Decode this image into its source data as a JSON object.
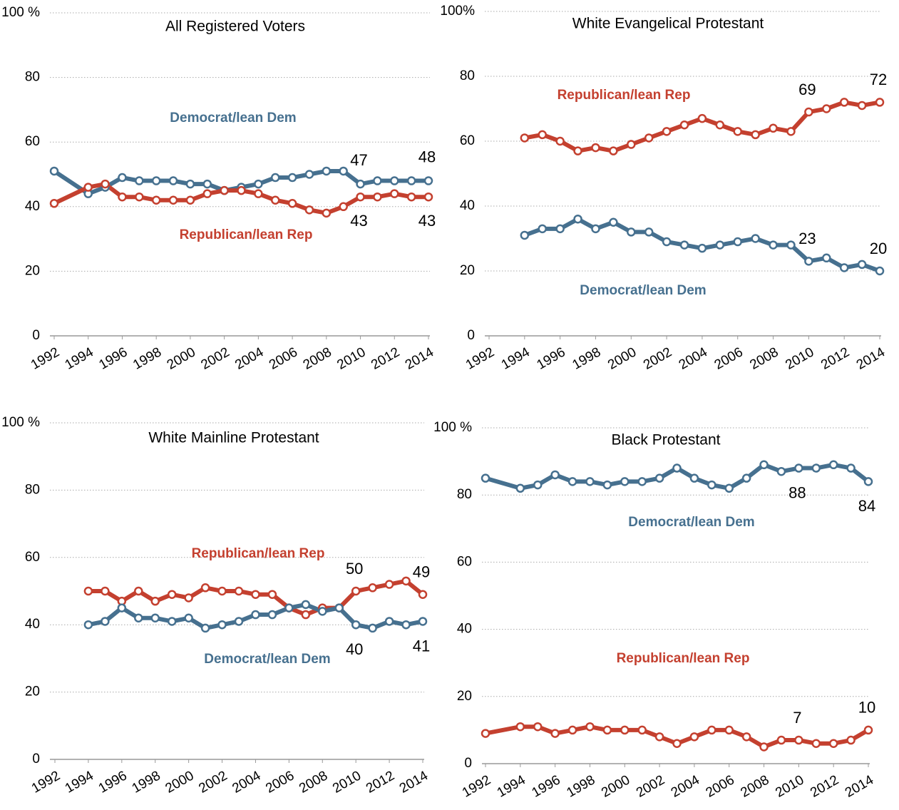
{
  "chart_data": [
    {
      "type": "line",
      "title": "All Registered Voters",
      "x": [
        1992,
        1994,
        1995,
        1996,
        1997,
        1998,
        1999,
        2000,
        2001,
        2002,
        2003,
        2004,
        2005,
        2006,
        2007,
        2008,
        2009,
        2010,
        2011,
        2012,
        2013,
        2014
      ],
      "series": [
        {
          "name": "Democrat/lean Dem",
          "color": "#46708f",
          "values": [
            51,
            44,
            46,
            49,
            48,
            48,
            48,
            47,
            47,
            45,
            46,
            47,
            49,
            49,
            50,
            51,
            51,
            47,
            48,
            48,
            48,
            48
          ],
          "label_indices": [
            17,
            21
          ]
        },
        {
          "name": "Republican/lean Rep",
          "color": "#c4402f",
          "values": [
            41,
            46,
            47,
            43,
            43,
            42,
            42,
            42,
            44,
            45,
            45,
            44,
            42,
            41,
            39,
            38,
            40,
            43,
            43,
            44,
            43,
            43
          ],
          "label_indices": [
            17,
            21
          ]
        }
      ],
      "xlim": [
        1992,
        2014
      ],
      "xticks": [
        1992,
        1994,
        1996,
        1998,
        2000,
        2002,
        2004,
        2006,
        2008,
        2010,
        2012,
        2014
      ],
      "ylim": [
        0,
        100
      ],
      "yticks": [
        0,
        20,
        40,
        60,
        80,
        {
          "value": 100,
          "label": "100 %"
        }
      ],
      "grid": true
    },
    {
      "type": "line",
      "title": "White Evangelical Protestant",
      "x": [
        1994,
        1995,
        1996,
        1997,
        1998,
        1999,
        2000,
        2001,
        2002,
        2003,
        2004,
        2005,
        2006,
        2007,
        2008,
        2009,
        2010,
        2011,
        2012,
        2013,
        2014
      ],
      "series": [
        {
          "name": "Republican/lean Rep",
          "color": "#c4402f",
          "values": [
            61,
            62,
            60,
            57,
            58,
            57,
            59,
            61,
            63,
            65,
            67,
            65,
            63,
            62,
            64,
            63,
            69,
            70,
            72,
            71,
            72
          ],
          "label_indices": [
            16,
            20
          ]
        },
        {
          "name": "Democrat/lean Dem",
          "color": "#46708f",
          "values": [
            31,
            33,
            33,
            36,
            33,
            35,
            32,
            32,
            29,
            28,
            27,
            28,
            29,
            30,
            28,
            28,
            23,
            24,
            21,
            22,
            20
          ],
          "label_indices": [
            16,
            20
          ]
        }
      ],
      "xlim": [
        1992,
        2014
      ],
      "xticks": [
        1992,
        1994,
        1996,
        1998,
        2000,
        2002,
        2004,
        2006,
        2008,
        2010,
        2012,
        2014
      ],
      "ylim": [
        0,
        100
      ],
      "yticks": [
        0,
        20,
        40,
        60,
        80,
        {
          "value": 100,
          "label": "100%"
        }
      ],
      "grid": true
    },
    {
      "type": "line",
      "title": "White Mainline Protestant",
      "x": [
        1994,
        1995,
        1996,
        1997,
        1998,
        1999,
        2000,
        2001,
        2002,
        2003,
        2004,
        2005,
        2006,
        2007,
        2008,
        2009,
        2010,
        2011,
        2012,
        2013,
        2014
      ],
      "series": [
        {
          "name": "Republican/lean Rep",
          "color": "#c4402f",
          "values": [
            50,
            50,
            47,
            50,
            47,
            49,
            48,
            51,
            50,
            50,
            49,
            49,
            45,
            43,
            45,
            45,
            50,
            51,
            52,
            53,
            49
          ],
          "label_indices": [
            16,
            20
          ]
        },
        {
          "name": "Democrat/lean Dem",
          "color": "#46708f",
          "values": [
            40,
            41,
            45,
            42,
            42,
            41,
            42,
            39,
            40,
            41,
            43,
            43,
            45,
            46,
            44,
            45,
            40,
            39,
            41,
            40,
            41
          ],
          "label_indices": [
            16,
            20
          ]
        }
      ],
      "xlim": [
        1992,
        2014
      ],
      "xticks": [
        1992,
        1994,
        1996,
        1998,
        2000,
        2002,
        2004,
        2006,
        2008,
        2010,
        2012,
        2014
      ],
      "ylim": [
        0,
        100
      ],
      "yticks": [
        0,
        20,
        40,
        60,
        80,
        {
          "value": 100,
          "label": "100 %"
        }
      ],
      "grid": true
    },
    {
      "type": "line",
      "title": "Black Protestant",
      "x": [
        1992,
        1994,
        1995,
        1996,
        1997,
        1998,
        1999,
        2000,
        2001,
        2002,
        2003,
        2004,
        2005,
        2006,
        2007,
        2008,
        2009,
        2010,
        2011,
        2012,
        2013,
        2014
      ],
      "series": [
        {
          "name": "Democrat/lean Dem",
          "color": "#46708f",
          "values": [
            85,
            82,
            83,
            86,
            84,
            84,
            83,
            84,
            84,
            85,
            88,
            85,
            83,
            82,
            85,
            89,
            87,
            88,
            88,
            89,
            88,
            84
          ],
          "label_indices": [
            17,
            21
          ]
        },
        {
          "name": "Republican/lean Rep",
          "color": "#c4402f",
          "values": [
            9,
            11,
            11,
            9,
            10,
            11,
            10,
            10,
            10,
            8,
            6,
            8,
            10,
            10,
            8,
            5,
            7,
            7,
            6,
            6,
            7,
            10
          ],
          "label_indices": [
            17,
            21
          ]
        }
      ],
      "xlim": [
        1992,
        2014
      ],
      "xticks": [
        1992,
        1994,
        1996,
        1998,
        2000,
        2002,
        2004,
        2006,
        2008,
        2010,
        2012,
        2014
      ],
      "ylim": [
        0,
        100
      ],
      "yticks": [
        0,
        20,
        40,
        60,
        80,
        {
          "value": 100,
          "label": "100 %"
        }
      ],
      "grid": true
    }
  ]
}
